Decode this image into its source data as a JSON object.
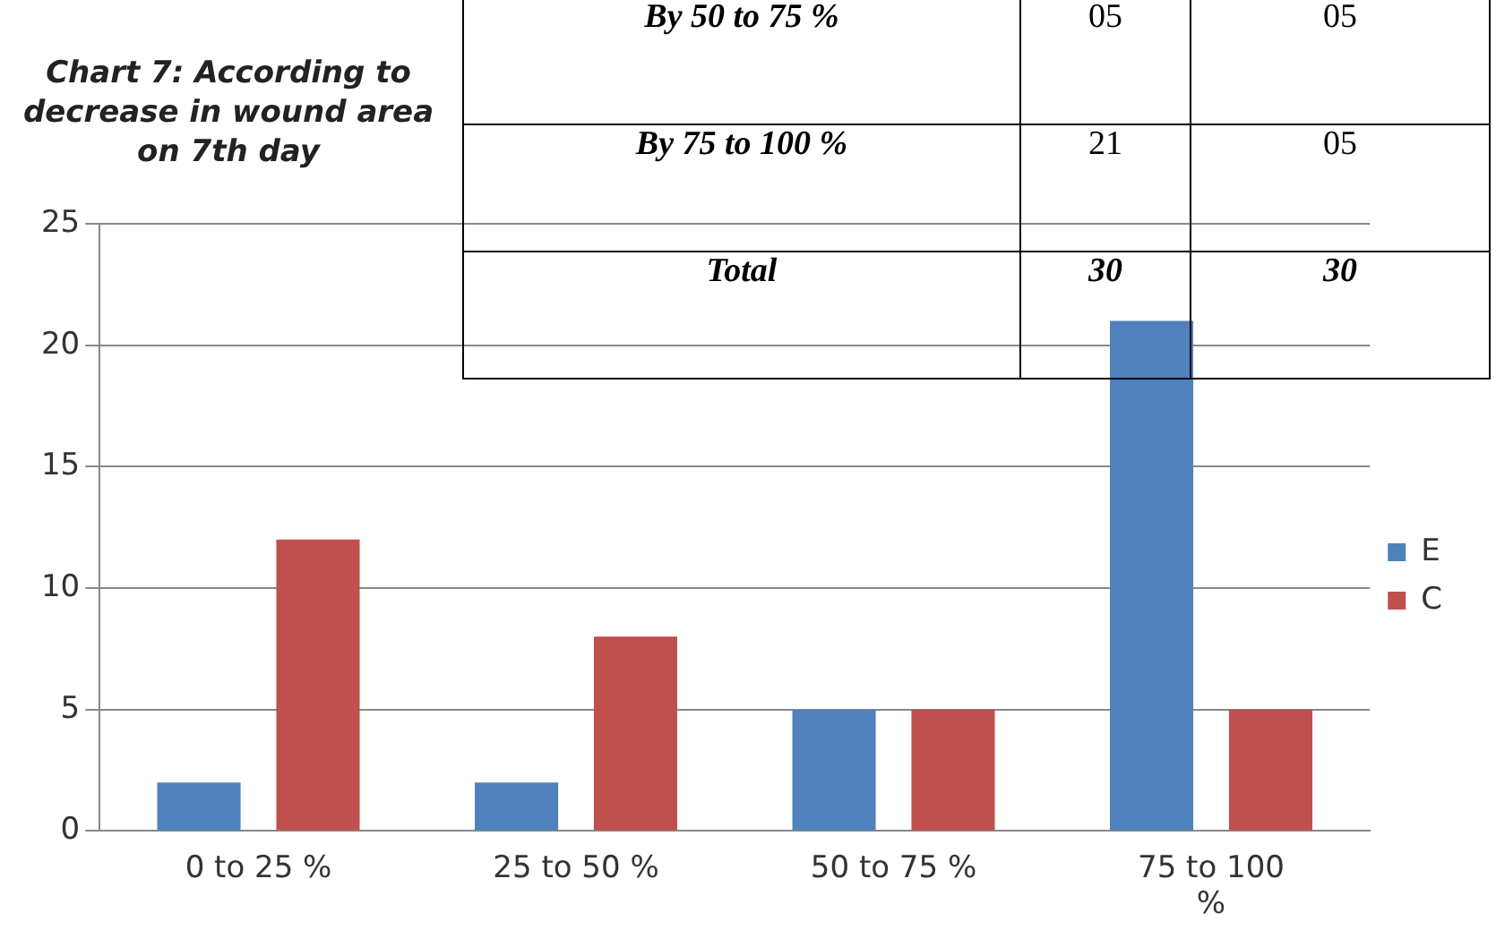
{
  "chart_data": {
    "type": "bar",
    "title": "Chart 7: According to decrease in wound area on 7th day",
    "categories": [
      "0 to 25 %",
      "25 to 50 %",
      "50 to 75 %",
      "75 to 100 %"
    ],
    "series": [
      {
        "name": "E",
        "color": "#4f81bd",
        "values": [
          2,
          2,
          5,
          21
        ]
      },
      {
        "name": "C",
        "color": "#c0504d",
        "values": [
          12,
          8,
          5,
          5
        ]
      }
    ],
    "ylim": [
      0,
      25
    ],
    "yticks": [
      0,
      5,
      10,
      15,
      20,
      25
    ],
    "grid": "y",
    "legend": "right",
    "annotations": [
      "By 50 to 75 %",
      "05",
      "05",
      "By 75 to 100 %",
      "21",
      "05",
      "Total",
      "30",
      "30"
    ]
  }
}
